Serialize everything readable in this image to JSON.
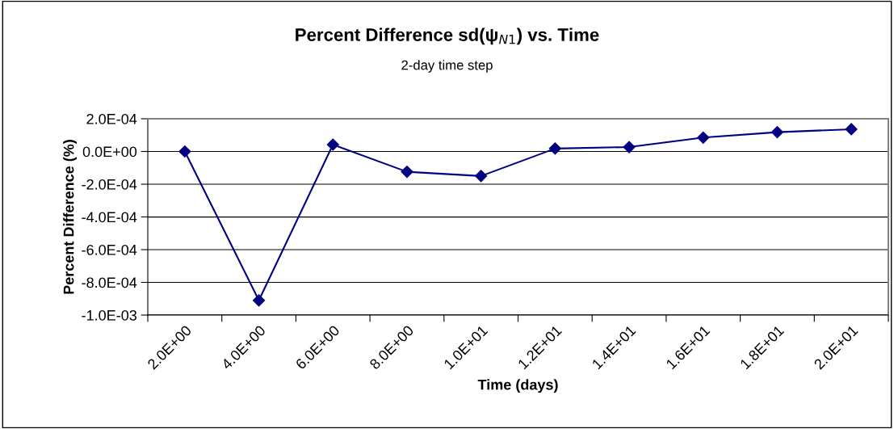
{
  "chart_data": {
    "type": "line",
    "title": "Percent Difference sd(ψ$_{N1}$) vs. Time",
    "subtitle": "2-day time step",
    "xlabel": "Time (days)",
    "ylabel": "Percent Difference (%)",
    "categories": [
      "2.0E+00",
      "4.0E+00",
      "6.0E+00",
      "8.0E+00",
      "1.0E+01",
      "1.2E+01",
      "1.4E+01",
      "1.6E+01",
      "1.8E+01",
      "2.0E+01"
    ],
    "series": [
      {
        "color": "#000080",
        "values": [
          0.0,
          -0.00091,
          4.2e-05,
          -0.000124,
          -0.00015,
          1.8e-05,
          2.7e-05,
          8.5e-05,
          0.000118,
          0.000136
        ]
      }
    ],
    "ylim": [
      -0.001,
      0.0002
    ],
    "yticks": [
      {
        "value": 0.0002,
        "label": "2.0E-04"
      },
      {
        "value": 0.0,
        "label": "0.0E+00"
      },
      {
        "value": -0.0002,
        "label": "-2.0E-04"
      },
      {
        "value": -0.0004,
        "label": "-4.0E-04"
      },
      {
        "value": -0.0006,
        "label": "-6.0E-04"
      },
      {
        "value": -0.0008,
        "label": "-8.0E-04"
      },
      {
        "value": -0.001,
        "label": "-1.0E-03"
      }
    ],
    "grid": "y",
    "marker": "diamond",
    "line_style": "solid",
    "legend": false
  }
}
